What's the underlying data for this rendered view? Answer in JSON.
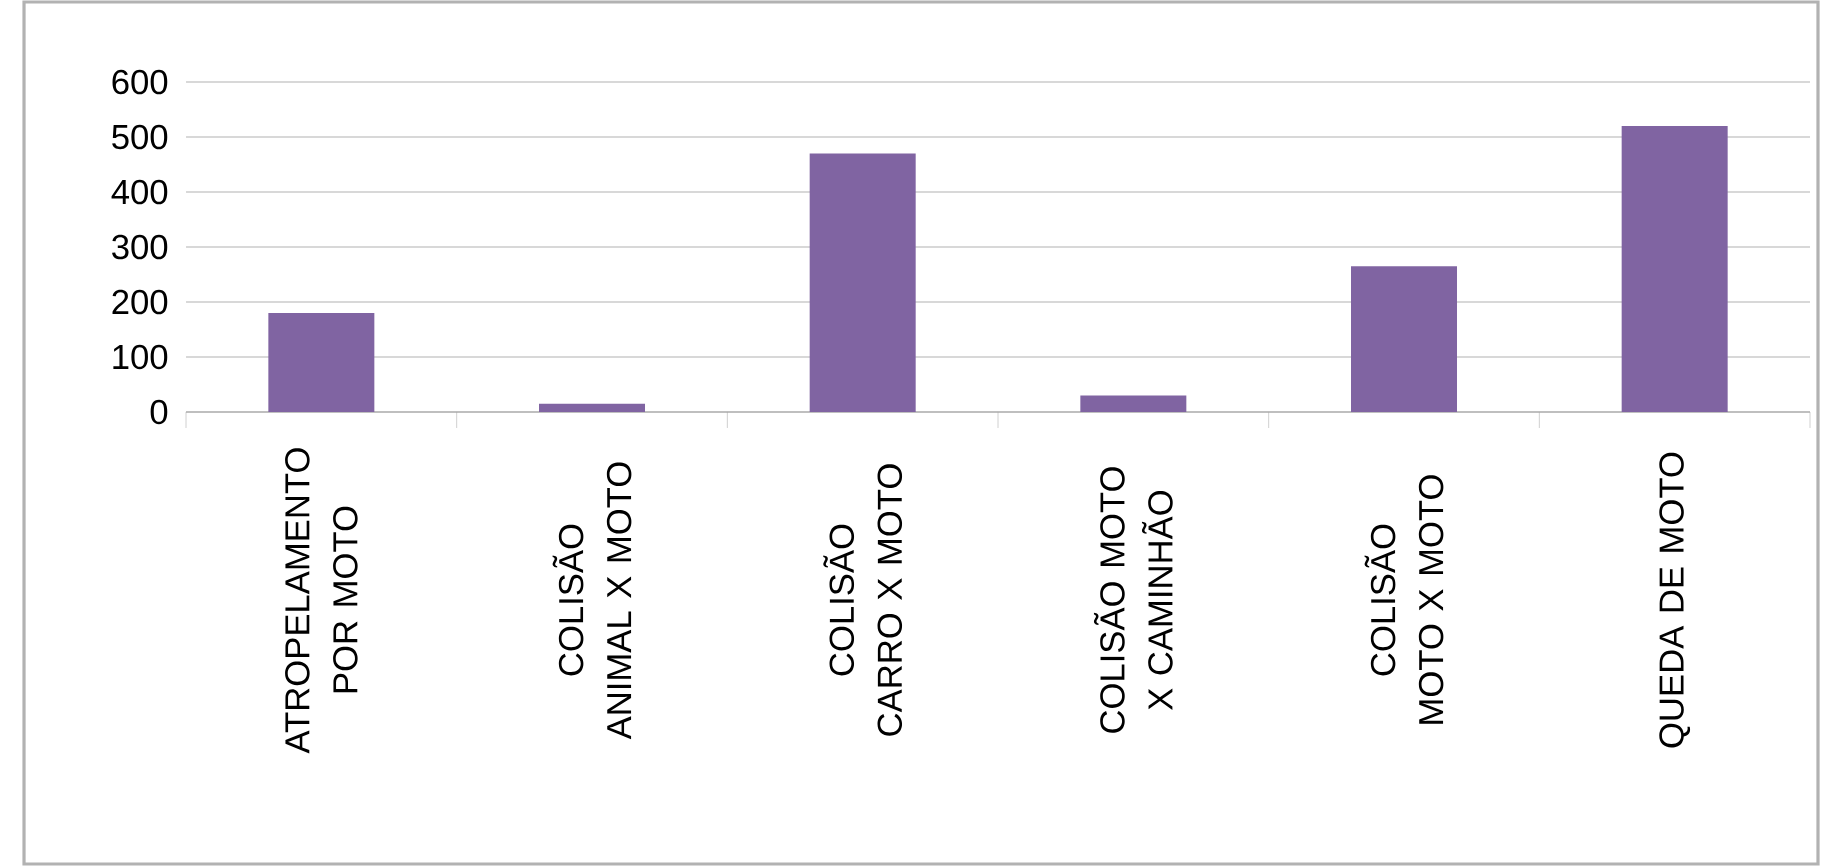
{
  "chart_data": {
    "type": "bar",
    "categories": [
      "ATROPELAMENTO POR MOTO",
      "COLISÃO ANIMAL X MOTO",
      "COLISÃO CARRO X MOTO",
      "COLISÃO MOTO X CAMINHÃO",
      "COLISÃO MOTO X MOTO",
      "QUEDA DE MOTO"
    ],
    "values": [
      180,
      15,
      470,
      30,
      265,
      520
    ],
    "color": "#8064a2",
    "ylim": [
      0,
      600
    ],
    "yticks": [
      0,
      100,
      200,
      300,
      400,
      500,
      600
    ],
    "grid": "y"
  }
}
